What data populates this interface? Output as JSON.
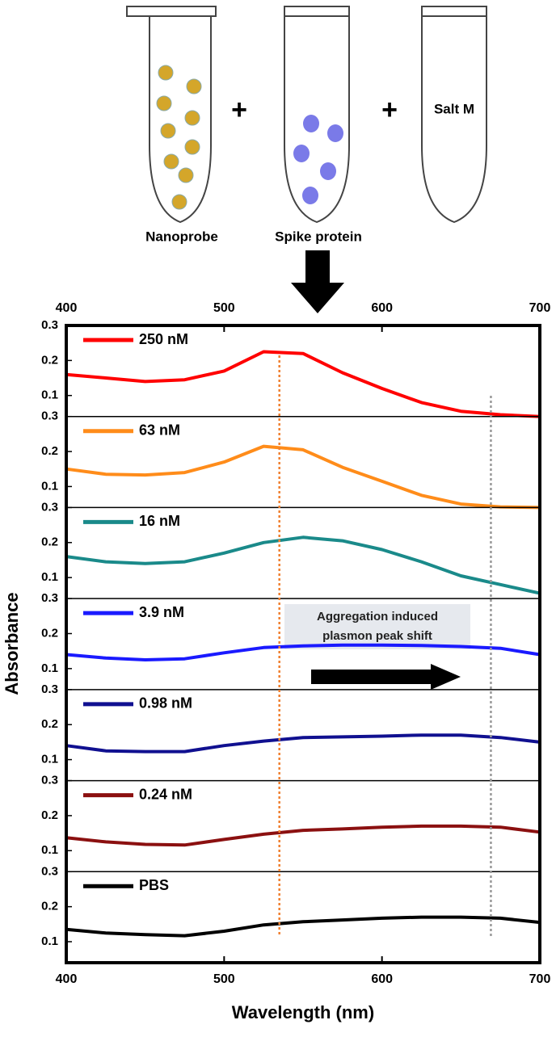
{
  "illustration": {
    "tube_labels": [
      "Nanoprobe",
      "Spike protein",
      "Salt M"
    ],
    "plus_signs": [
      "+",
      "+"
    ]
  },
  "chart_data": {
    "type": "line",
    "layout": "stacked",
    "x": [
      400,
      425,
      450,
      475,
      500,
      525,
      550,
      575,
      600,
      625,
      650,
      675,
      700
    ],
    "xlim": [
      400,
      700
    ],
    "xticks": [
      400,
      500,
      600,
      700
    ],
    "ylim": [
      0.04,
      0.3
    ],
    "yticks": [
      0.1,
      0.2,
      0.3
    ],
    "xlabel": "Wavelength (nm)",
    "ylabel": "Absorbance",
    "series": [
      {
        "name": "250 nM",
        "color": "#ff0000",
        "values": [
          0.16,
          0.15,
          0.14,
          0.145,
          0.17,
          0.225,
          0.22,
          0.165,
          0.12,
          0.08,
          0.055,
          0.045,
          0.04
        ]
      },
      {
        "name": "63 nM",
        "color": "#ff8c1a",
        "values": [
          0.15,
          0.135,
          0.133,
          0.14,
          0.17,
          0.215,
          0.205,
          0.155,
          0.115,
          0.075,
          0.05,
          0.042,
          0.04
        ]
      },
      {
        "name": "16 nM",
        "color": "#1a8a8a",
        "values": [
          0.16,
          0.145,
          0.14,
          0.145,
          0.17,
          0.2,
          0.215,
          0.205,
          0.18,
          0.145,
          0.105,
          0.08,
          0.055
        ]
      },
      {
        "name": "3.9 nM",
        "color": "#1a1aff",
        "values": [
          0.14,
          0.13,
          0.125,
          0.128,
          0.145,
          0.16,
          0.165,
          0.167,
          0.167,
          0.166,
          0.163,
          0.158,
          0.14
        ]
      },
      {
        "name": "0.98 nM",
        "color": "#101090",
        "values": [
          0.14,
          0.125,
          0.123,
          0.123,
          0.14,
          0.153,
          0.163,
          0.165,
          0.167,
          0.17,
          0.17,
          0.163,
          0.15
        ]
      },
      {
        "name": "0.24 nM",
        "color": "#8b1010",
        "values": [
          0.137,
          0.125,
          0.118,
          0.116,
          0.132,
          0.147,
          0.158,
          0.162,
          0.167,
          0.17,
          0.17,
          0.167,
          0.153
        ]
      },
      {
        "name": "PBS",
        "color": "#000000",
        "values": [
          0.135,
          0.125,
          0.12,
          0.117,
          0.13,
          0.148,
          0.157,
          0.162,
          0.167,
          0.17,
          0.17,
          0.167,
          0.155
        ]
      }
    ],
    "annotation": [
      "Aggregation induced",
      "plasmon peak shift"
    ],
    "reference_lines": [
      {
        "x": 535,
        "color": "#f08030"
      },
      {
        "x": 669,
        "color": "#999999"
      }
    ]
  }
}
